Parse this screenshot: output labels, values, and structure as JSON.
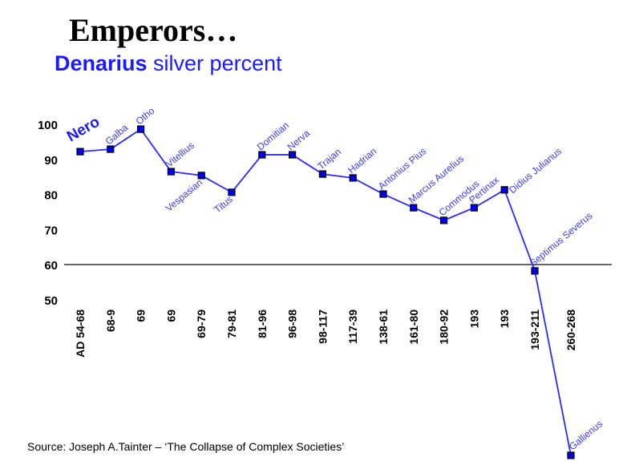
{
  "chart_data": {
    "type": "line",
    "title": "Emperors…",
    "subtitle_bold": "Denarius",
    "subtitle_rest": " silver percent",
    "xlabel": "",
    "ylabel": "",
    "ylim": [
      50,
      100
    ],
    "yticks": [
      "100",
      "90",
      "80",
      "70",
      "60",
      "50"
    ],
    "reference_line": 60,
    "categories": [
      "AD 54-68",
      "68-9",
      "69",
      "69",
      "69-79",
      "79-81",
      "81-96",
      "96-98",
      "98-117",
      "117-39",
      "138-61",
      "161-80",
      "180-92",
      "193",
      "193",
      "193-211",
      "260-268"
    ],
    "emperors": [
      "Nero",
      "Galba",
      "Otho",
      "Vitellius",
      "Vespasian",
      "Titus",
      "Domitian",
      "Nerva",
      "Trajan",
      "Hadrian",
      "Antonius Pius",
      "Marcus Aurelius",
      "Commodus",
      "Pertinax",
      "Didius Julianus",
      "Septimus Severus",
      "Gallienus"
    ],
    "values": [
      92.2,
      92.9,
      98.6,
      86.5,
      85.4,
      80.6,
      91.3,
      91.3,
      85.8,
      84.7,
      80.1,
      76.2,
      72.6,
      76.2,
      81.3,
      58.2,
      5.6
    ],
    "line_color": "#2b2bff",
    "grid": false
  },
  "source": "Source: Joseph A.Tainter – ‘The Collapse of Complex Societies’"
}
